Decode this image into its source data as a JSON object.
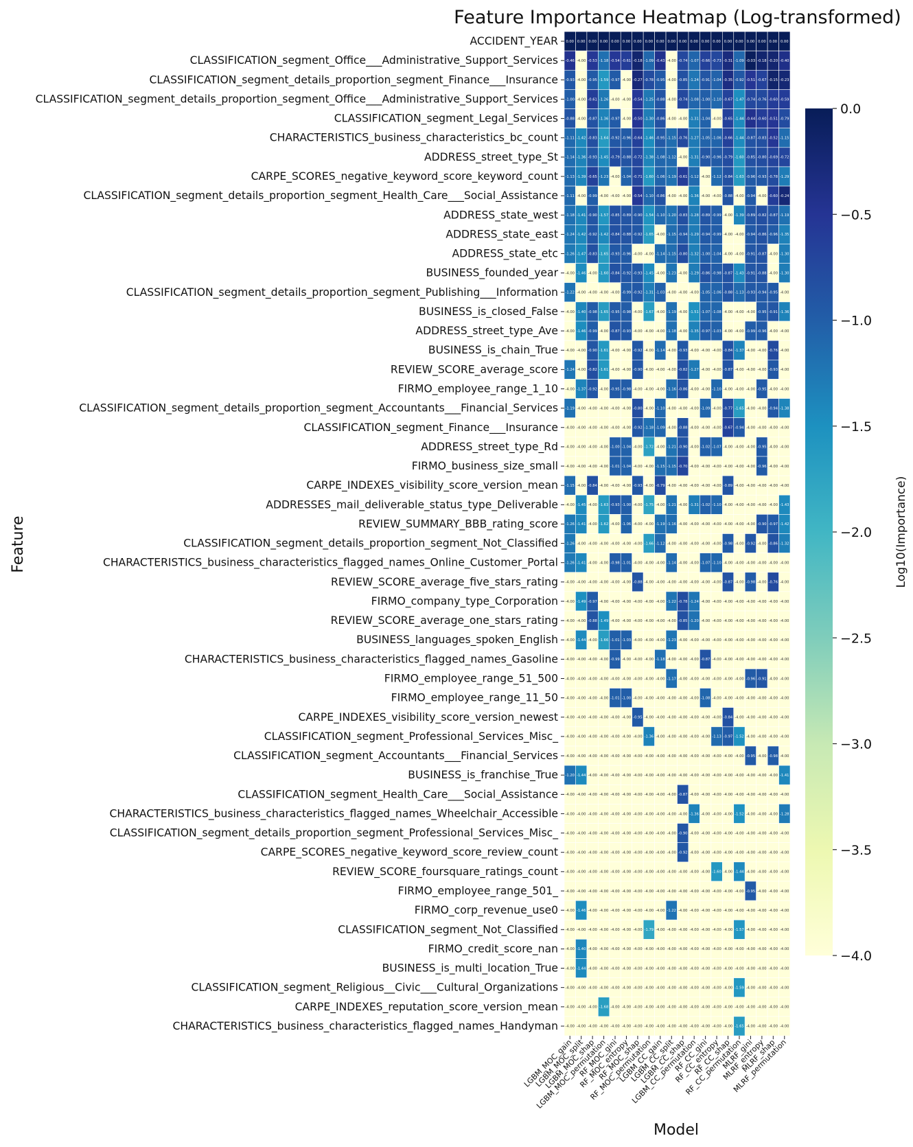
{
  "chart_data": {
    "type": "heatmap",
    "title": "Feature Importance Heatmap (Log-transformed)",
    "xlabel": "Model",
    "ylabel": "Feature",
    "colorbar_label": "Log10(Importance)",
    "colorbar_ticks": [
      "0.0",
      "−0.5",
      "−1.0",
      "−1.5",
      "−2.0",
      "−2.5",
      "−3.0",
      "−3.5",
      "−4.0"
    ],
    "colorbar_tick_values": [
      0.0,
      -0.5,
      -1.0,
      -1.5,
      -2.0,
      -2.5,
      -3.0,
      -3.5,
      -4.0
    ],
    "vmin": -4.0,
    "vmax": 0.0,
    "colormap": "YlGnBu",
    "colormap_stops": [
      "#ffffd9",
      "#edf8b1",
      "#c7e9b4",
      "#7fcdbb",
      "#41b6c4",
      "#1d91c0",
      "#225ea8",
      "#253494",
      "#081d58"
    ],
    "cell_text_light": "#ffffff",
    "cell_text_dark": "#333333",
    "models": [
      "LGBM_MOC_gain",
      "LGBM_MOC_split",
      "LGBM_MOC_shap",
      "LGBM_MOC_permutation",
      "RF_MOC_gini",
      "RF_MOC_entropy",
      "RF_MOC_shap",
      "RF_MOC_permutation",
      "LGBM_CC_gain",
      "LGBM_CC_split",
      "LGBM_CC_shap",
      "LGBM_CC_permutation",
      "RF_CC_gini",
      "RF_CC_entropy",
      "RF_CC_shap",
      "RF_CC_permutation",
      "MLRF_gini",
      "MLRF_entropy",
      "MLRF_shap",
      "MLRF_permutation"
    ],
    "features": [
      "ACCIDENT_YEAR",
      "CLASSIFICATION_segment_Office___Administrative_Support_Services",
      "CLASSIFICATION_segment_details_proportion_segment_Finance___Insurance",
      "CLASSIFICATION_segment_details_proportion_segment_Office___Administrative_Support_Services",
      "CLASSIFICATION_segment_Legal_Services",
      "CHARACTERISTICS_business_characteristics_bc_count",
      "ADDRESS_street_type_St",
      "CARPE_SCORES_negative_keyword_score_keyword_count",
      "CLASSIFICATION_segment_details_proportion_segment_Health_Care___Social_Assistance",
      "ADDRESS_state_west",
      "ADDRESS_state_east",
      "ADDRESS_state_etc",
      "BUSINESS_founded_year",
      "CLASSIFICATION_segment_details_proportion_segment_Publishing___Information",
      "BUSINESS_is_closed_False",
      "ADDRESS_street_type_Ave",
      "BUSINESS_is_chain_True",
      "REVIEW_SCORE_average_score",
      "FIRMO_employee_range_1_10",
      "CLASSIFICATION_segment_details_proportion_segment_Accountants___Financial_Services",
      "CLASSIFICATION_segment_Finance___Insurance",
      "ADDRESS_street_type_Rd",
      "FIRMO_business_size_small",
      "CARPE_INDEXES_visibility_score_version_mean",
      "ADDRESSES_mail_deliverable_status_type_Deliverable",
      "REVIEW_SUMMARY_BBB_rating_score",
      "CLASSIFICATION_segment_details_proportion_segment_Not_Classified",
      "CHARACTERISTICS_business_characteristics_flagged_names_Online_Customer_Portal",
      "REVIEW_SCORE_average_five_stars_rating",
      "FIRMO_company_type_Corporation",
      "REVIEW_SCORE_average_one_stars_rating",
      "BUSINESS_languages_spoken_English",
      "CHARACTERISTICS_business_characteristics_flagged_names_Gasoline",
      "FIRMO_employee_range_51_500",
      "FIRMO_employee_range_11_50",
      "CARPE_INDEXES_visibility_score_version_newest",
      "CLASSIFICATION_segment_Professional_Services_Misc_",
      "CLASSIFICATION_segment_Accountants___Financial_Services",
      "BUSINESS_is_franchise_True",
      "CLASSIFICATION_segment_Health_Care___Social_Assistance",
      "CHARACTERISTICS_business_characteristics_flagged_names_Wheelchair_Accessible",
      "CLASSIFICATION_segment_details_proportion_segment_Professional_Services_Misc_",
      "CARPE_SCORES_negative_keyword_score_review_count",
      "REVIEW_SCORE_foursquare_ratings_count",
      "FIRMO_employee_range_501_",
      "FIRMO_corp_revenue_use0",
      "CLASSIFICATION_segment_Not_Classified",
      "FIRMO_credit_score_nan",
      "BUSINESS_is_multi_location_True",
      "CLASSIFICATION_segment_Religious__Civic___Cultural_Organizations",
      "CARPE_INDEXES_reputation_score_version_mean",
      "CHARACTERISTICS_business_characteristics_flagged_names_Handyman"
    ],
    "values": [
      [
        0.0,
        0.0,
        0.0,
        0.0,
        0.0,
        0.0,
        0.0,
        0.0,
        0.0,
        0.0,
        0.0,
        0.0,
        0.0,
        0.0,
        0.0,
        0.0,
        0.0,
        0.0,
        0.0,
        0.0
      ],
      [
        -0.46,
        -4.0,
        -0.53,
        -1.18,
        -0.54,
        -0.61,
        -0.18,
        -1.09,
        -0.43,
        -4.0,
        -0.74,
        -1.07,
        -0.66,
        -0.73,
        -0.31,
        -1.09,
        -0.03,
        -0.18,
        -0.2,
        -0.4
      ],
      [
        -0.93,
        -4.0,
        -0.95,
        -1.59,
        -0.97,
        -4.0,
        -0.27,
        -0.78,
        -0.95,
        -4.0,
        -0.85,
        -1.24,
        -0.91,
        -1.04,
        -0.35,
        -0.92,
        -0.51,
        -0.67,
        -0.15,
        -0.23
      ],
      [
        -1.0,
        -4.0,
        -0.61,
        -1.26,
        -4.0,
        -4.0,
        -0.54,
        -1.25,
        -0.88,
        -4.0,
        -0.74,
        -1.08,
        -1.0,
        -1.1,
        -0.67,
        -1.47,
        -0.74,
        -0.76,
        -0.6,
        -0.59
      ],
      [
        -0.88,
        -4.0,
        -0.87,
        -1.36,
        -0.97,
        -4.0,
        -0.5,
        -1.3,
        -0.86,
        -4.0,
        -4.0,
        -1.31,
        -1.04,
        -4.0,
        -0.65,
        -1.44,
        -0.44,
        -0.6,
        -0.51,
        -0.79
      ],
      [
        -1.11,
        -1.42,
        -0.83,
        -1.64,
        -0.92,
        -0.96,
        -0.64,
        -1.46,
        -0.95,
        -1.15,
        -0.76,
        -1.27,
        -1.05,
        -1.06,
        -0.66,
        -1.44,
        -0.87,
        -0.83,
        -0.52,
        -1.15
      ],
      [
        -1.14,
        -1.36,
        -0.93,
        -1.45,
        -0.79,
        -0.88,
        -0.72,
        -1.38,
        -1.08,
        -1.12,
        -4.0,
        -1.31,
        -0.9,
        -0.96,
        -0.79,
        -1.6,
        -0.85,
        -0.8,
        -0.69,
        -0.72
      ],
      [
        -1.13,
        -1.39,
        -0.65,
        -1.23,
        -4.0,
        -1.04,
        -0.71,
        -1.6,
        -1.06,
        -1.19,
        -0.61,
        -1.12,
        -4.0,
        -1.12,
        -0.84,
        -1.63,
        -0.96,
        -0.93,
        -0.78,
        -1.29
      ],
      [
        -1.11,
        -4.0,
        -0.99,
        -4.0,
        -4.0,
        -4.0,
        -0.54,
        -1.1,
        -0.86,
        -4.0,
        -4.0,
        -1.36,
        -4.0,
        -4.0,
        -0.88,
        -4.0,
        -0.94,
        -4.0,
        -0.6,
        -0.24
      ],
      [
        -1.18,
        -1.41,
        -0.9,
        -1.57,
        -0.85,
        -0.89,
        -0.9,
        -1.54,
        -1.1,
        -1.2,
        -0.83,
        -1.28,
        -0.89,
        -0.99,
        -4.0,
        -1.39,
        -0.89,
        -0.82,
        -0.87,
        -1.19
      ],
      [
        -1.24,
        -1.42,
        -0.92,
        -1.42,
        -0.84,
        -0.88,
        -0.92,
        -1.65,
        -4.0,
        -1.15,
        -0.94,
        -1.29,
        -0.94,
        -0.99,
        -4.0,
        -4.0,
        -0.94,
        -0.86,
        -0.96,
        -1.35
      ],
      [
        -1.26,
        -1.47,
        -0.83,
        -1.65,
        -0.93,
        -0.96,
        -4.0,
        -4.0,
        -1.14,
        -1.15,
        -0.8,
        -1.32,
        -1.0,
        -1.04,
        -4.0,
        -4.0,
        -0.91,
        -0.87,
        -4.0,
        -1.3
      ],
      [
        -4.0,
        -1.46,
        -4.0,
        -1.6,
        -0.84,
        -0.92,
        -0.93,
        -1.45,
        -4.0,
        -1.23,
        -4.0,
        -1.29,
        -0.86,
        -0.98,
        -0.87,
        -1.43,
        -0.91,
        -0.88,
        -4.0,
        -1.3
      ],
      [
        -1.22,
        -4.0,
        -4.0,
        -4.0,
        -4.0,
        -0.99,
        -0.92,
        -1.31,
        -1.03,
        -4.0,
        -4.0,
        -4.0,
        -1.05,
        -1.06,
        -0.88,
        -1.13,
        -0.93,
        -0.94,
        -0.95,
        -4.0
      ],
      [
        -4.0,
        -1.4,
        -0.98,
        -1.65,
        -0.95,
        -0.98,
        -4.0,
        -1.67,
        -4.0,
        -1.19,
        -4.0,
        -1.51,
        -1.07,
        -1.08,
        -4.0,
        -4.0,
        -4.0,
        -0.95,
        -0.91,
        -1.36
      ],
      [
        -4.0,
        -1.46,
        -0.99,
        -4.0,
        -0.87,
        -0.93,
        -4.0,
        -4.0,
        -4.0,
        -1.18,
        -4.0,
        -1.35,
        -0.97,
        -1.03,
        -4.0,
        -4.0,
        -0.99,
        -0.96,
        -4.0,
        -4.0
      ],
      [
        -4.0,
        -4.0,
        -0.9,
        -1.61,
        -4.0,
        -4.0,
        -0.92,
        -4.0,
        -1.14,
        -4.0,
        -0.93,
        -4.0,
        -4.0,
        -4.0,
        -0.84,
        -1.37,
        -4.0,
        -4.0,
        -0.76,
        -4.0
      ],
      [
        -1.24,
        -4.0,
        -0.82,
        -1.61,
        -4.0,
        -4.0,
        -0.9,
        -4.0,
        -4.0,
        -4.0,
        -0.82,
        -1.27,
        -4.0,
        -4.0,
        -0.87,
        -4.0,
        -4.0,
        -4.0,
        -0.93,
        -4.0
      ],
      [
        -4.0,
        -1.37,
        -0.92,
        -4.0,
        -0.95,
        -0.98,
        -4.0,
        -4.0,
        -4.0,
        -1.16,
        -0.86,
        -4.0,
        -4.0,
        -1.1,
        -4.0,
        -4.0,
        -4.0,
        -0.95,
        -4.0,
        -4.0
      ],
      [
        -1.19,
        -4.0,
        -4.0,
        -4.0,
        -4.0,
        -4.0,
        -0.8,
        -4.0,
        -1.1,
        -4.0,
        -4.0,
        -4.0,
        -1.09,
        -4.0,
        -0.77,
        -1.65,
        -4.0,
        -4.0,
        -0.94,
        -1.38
      ],
      [
        -4.0,
        -4.0,
        -4.0,
        -4.0,
        -4.0,
        -4.0,
        -0.92,
        -1.18,
        -1.09,
        -4.0,
        -0.88,
        -4.0,
        -4.0,
        -4.0,
        -0.67,
        -0.94,
        -4.0,
        -4.0,
        -4.0,
        -4.0
      ],
      [
        -4.0,
        -4.0,
        -4.0,
        -4.0,
        -1.0,
        -1.04,
        -4.0,
        -1.72,
        -4.0,
        -1.21,
        -0.9,
        -4.0,
        -1.02,
        -1.07,
        -4.0,
        -4.0,
        -4.0,
        -0.95,
        -4.0,
        -4.0
      ],
      [
        -4.0,
        -4.0,
        -4.0,
        -4.0,
        -1.01,
        -1.04,
        -4.0,
        -4.0,
        -1.15,
        -1.15,
        -0.7,
        -4.0,
        -4.0,
        -4.0,
        -4.0,
        -4.0,
        -4.0,
        -0.96,
        -4.0,
        -4.0
      ],
      [
        -1.15,
        -4.0,
        -0.84,
        -4.0,
        -4.0,
        -4.0,
        -0.93,
        -4.0,
        -0.79,
        -4.0,
        -4.0,
        -4.0,
        -4.0,
        -4.0,
        -0.89,
        -4.0,
        -4.0,
        -4.0,
        -4.0,
        -4.0
      ],
      [
        -4.0,
        -1.45,
        -4.0,
        -1.63,
        -0.93,
        -1.0,
        -4.0,
        -1.75,
        -4.0,
        -1.21,
        -4.0,
        -1.31,
        -1.02,
        -1.1,
        -4.0,
        -4.0,
        -4.0,
        -4.0,
        -4.0,
        -1.43
      ],
      [
        -1.26,
        -1.41,
        -4.0,
        -1.62,
        -4.0,
        -1.06,
        -4.0,
        -4.0,
        -1.19,
        -1.16,
        -4.0,
        -4.0,
        -4.0,
        -4.0,
        -4.0,
        -4.0,
        -4.0,
        -0.9,
        -0.97,
        -1.42
      ],
      [
        -1.26,
        -4.0,
        -4.0,
        -4.0,
        -4.0,
        -4.0,
        -4.0,
        -1.66,
        -1.12,
        -4.0,
        -4.0,
        -4.0,
        -4.0,
        -4.0,
        -0.98,
        -4.0,
        -0.92,
        -4.0,
        -0.86,
        -1.32
      ],
      [
        -1.26,
        -1.41,
        -4.0,
        -4.0,
        -0.98,
        -1.01,
        -4.0,
        -4.0,
        -4.0,
        -1.14,
        -4.0,
        -4.0,
        -1.07,
        -1.1,
        -4.0,
        -4.0,
        -4.0,
        -4.0,
        -4.0,
        -4.0
      ],
      [
        -4.0,
        -4.0,
        -4.0,
        -4.0,
        -4.0,
        -4.0,
        -0.88,
        -4.0,
        -4.0,
        -4.0,
        -4.0,
        -4.0,
        -4.0,
        -4.0,
        -0.87,
        -4.0,
        -0.98,
        -4.0,
        -0.76,
        -4.0
      ],
      [
        -4.0,
        -1.49,
        -0.97,
        -4.0,
        -4.0,
        -4.0,
        -4.0,
        -4.0,
        -4.0,
        -1.22,
        -0.78,
        -1.24,
        -4.0,
        -4.0,
        -4.0,
        -4.0,
        -4.0,
        -4.0,
        -4.0,
        -4.0
      ],
      [
        -4.0,
        -4.0,
        -0.88,
        -1.49,
        -4.0,
        -4.0,
        -4.0,
        -4.0,
        -4.0,
        -4.0,
        -0.85,
        -1.2,
        -4.0,
        -4.0,
        -4.0,
        -4.0,
        -4.0,
        -4.0,
        -4.0,
        -4.0
      ],
      [
        -4.0,
        -1.44,
        -4.0,
        -1.66,
        -1.01,
        -1.03,
        -4.0,
        -4.0,
        -4.0,
        -1.23,
        -4.0,
        -4.0,
        -4.0,
        -4.0,
        -4.0,
        -4.0,
        -4.0,
        -4.0,
        -4.0,
        -4.0
      ],
      [
        -4.0,
        -4.0,
        -4.0,
        -4.0,
        -0.99,
        -4.0,
        -4.0,
        -4.0,
        -1.18,
        -4.0,
        -4.0,
        -4.0,
        -0.87,
        -4.0,
        -4.0,
        -4.0,
        -4.0,
        -4.0,
        -4.0,
        -4.0
      ],
      [
        -4.0,
        -4.0,
        -4.0,
        -4.0,
        -4.0,
        -4.0,
        -4.0,
        -4.0,
        -4.0,
        -1.17,
        -4.0,
        -4.0,
        -4.0,
        -4.0,
        -4.0,
        -4.0,
        -0.96,
        -0.91,
        -4.0,
        -4.0
      ],
      [
        -4.0,
        -4.0,
        -4.0,
        -4.0,
        -1.01,
        -1.0,
        -4.0,
        -4.0,
        -4.0,
        -4.0,
        -4.0,
        -4.0,
        -1.08,
        -4.0,
        -4.0,
        -4.0,
        -4.0,
        -4.0,
        -4.0,
        -4.0
      ],
      [
        -4.0,
        -4.0,
        -4.0,
        -4.0,
        -4.0,
        -4.0,
        -0.95,
        -4.0,
        -4.0,
        -4.0,
        -4.0,
        -4.0,
        -4.0,
        -4.0,
        -0.84,
        -4.0,
        -4.0,
        -4.0,
        -4.0,
        -4.0
      ],
      [
        -4.0,
        -4.0,
        -4.0,
        -4.0,
        -4.0,
        -4.0,
        -4.0,
        -1.36,
        -4.0,
        -4.0,
        -4.0,
        -4.0,
        -4.0,
        -1.13,
        -0.97,
        -1.52,
        -4.0,
        -4.0,
        -4.0,
        -4.0
      ],
      [
        -4.0,
        -4.0,
        -4.0,
        -4.0,
        -4.0,
        -4.0,
        -4.0,
        -4.0,
        -4.0,
        -4.0,
        -4.0,
        -4.0,
        -4.0,
        -4.0,
        -4.0,
        -4.0,
        -0.95,
        -4.0,
        -0.98,
        -4.0
      ],
      [
        -1.2,
        -1.44,
        -4.0,
        -4.0,
        -4.0,
        -4.0,
        -4.0,
        -4.0,
        -4.0,
        -4.0,
        -4.0,
        -4.0,
        -4.0,
        -4.0,
        -4.0,
        -4.0,
        -4.0,
        -4.0,
        -4.0,
        -1.41
      ],
      [
        -4.0,
        -4.0,
        -4.0,
        -4.0,
        -4.0,
        -4.0,
        -4.0,
        -4.0,
        -4.0,
        -4.0,
        -0.87,
        -4.0,
        -4.0,
        -4.0,
        -4.0,
        -4.0,
        -4.0,
        -4.0,
        -4.0,
        -4.0
      ],
      [
        -4.0,
        -4.0,
        -4.0,
        -4.0,
        -4.0,
        -4.0,
        -4.0,
        -4.0,
        -4.0,
        -4.0,
        -4.0,
        -1.36,
        -4.0,
        -4.0,
        -4.0,
        -1.52,
        -4.0,
        -4.0,
        -4.0,
        -1.28
      ],
      [
        -4.0,
        -4.0,
        -4.0,
        -4.0,
        -4.0,
        -4.0,
        -4.0,
        -4.0,
        -4.0,
        -4.0,
        -0.9,
        -4.0,
        -4.0,
        -4.0,
        -4.0,
        -4.0,
        -4.0,
        -4.0,
        -4.0,
        -4.0
      ],
      [
        -4.0,
        -4.0,
        -4.0,
        -4.0,
        -4.0,
        -4.0,
        -4.0,
        -4.0,
        -4.0,
        -4.0,
        -0.92,
        -4.0,
        -4.0,
        -4.0,
        -4.0,
        -4.0,
        -4.0,
        -4.0,
        -4.0,
        -4.0
      ],
      [
        -4.0,
        -4.0,
        -4.0,
        -4.0,
        -4.0,
        -4.0,
        -4.0,
        -4.0,
        -4.0,
        -4.0,
        -4.0,
        -4.0,
        -4.0,
        -1.6,
        -4.0,
        -1.44,
        -4.0,
        -4.0,
        -4.0,
        -4.0
      ],
      [
        -4.0,
        -4.0,
        -4.0,
        -4.0,
        -4.0,
        -4.0,
        -4.0,
        -4.0,
        -4.0,
        -4.0,
        -4.0,
        -4.0,
        -4.0,
        -4.0,
        -4.0,
        -4.0,
        -0.95,
        -4.0,
        -4.0,
        -4.0
      ],
      [
        -4.0,
        -1.46,
        -4.0,
        -4.0,
        -4.0,
        -4.0,
        -4.0,
        -4.0,
        -4.0,
        -1.22,
        -4.0,
        -4.0,
        -4.0,
        -4.0,
        -4.0,
        -4.0,
        -4.0,
        -4.0,
        -4.0,
        -4.0
      ],
      [
        -4.0,
        -4.0,
        -4.0,
        -4.0,
        -4.0,
        -4.0,
        -4.0,
        -1.79,
        -4.0,
        -4.0,
        -4.0,
        -4.0,
        -4.0,
        -4.0,
        -4.0,
        -1.57,
        -4.0,
        -4.0,
        -4.0,
        -4.0
      ],
      [
        -4.0,
        -1.4,
        -4.0,
        -4.0,
        -4.0,
        -4.0,
        -4.0,
        -4.0,
        -4.0,
        -4.0,
        -4.0,
        -4.0,
        -4.0,
        -4.0,
        -4.0,
        -4.0,
        -4.0,
        -4.0,
        -4.0,
        -4.0
      ],
      [
        -4.0,
        -1.44,
        -4.0,
        -4.0,
        -4.0,
        -4.0,
        -4.0,
        -4.0,
        -4.0,
        -4.0,
        -4.0,
        -4.0,
        -4.0,
        -4.0,
        -4.0,
        -4.0,
        -4.0,
        -4.0,
        -4.0,
        -4.0
      ],
      [
        -4.0,
        -4.0,
        -4.0,
        -4.0,
        -4.0,
        -4.0,
        -4.0,
        -4.0,
        -4.0,
        -4.0,
        -4.0,
        -4.0,
        -4.0,
        -4.0,
        -4.0,
        -1.59,
        -4.0,
        -4.0,
        -4.0,
        -4.0
      ],
      [
        -4.0,
        -4.0,
        -4.0,
        -1.68,
        -4.0,
        -4.0,
        -4.0,
        -4.0,
        -4.0,
        -4.0,
        -4.0,
        -4.0,
        -4.0,
        -4.0,
        -4.0,
        -4.0,
        -4.0,
        -4.0,
        -4.0,
        -4.0
      ],
      [
        -4.0,
        -4.0,
        -4.0,
        -4.0,
        -4.0,
        -4.0,
        -4.0,
        -4.0,
        -4.0,
        -4.0,
        -4.0,
        -4.0,
        -4.0,
        -4.0,
        -4.0,
        -1.65,
        -4.0,
        -4.0,
        -4.0,
        -4.0
      ]
    ]
  }
}
